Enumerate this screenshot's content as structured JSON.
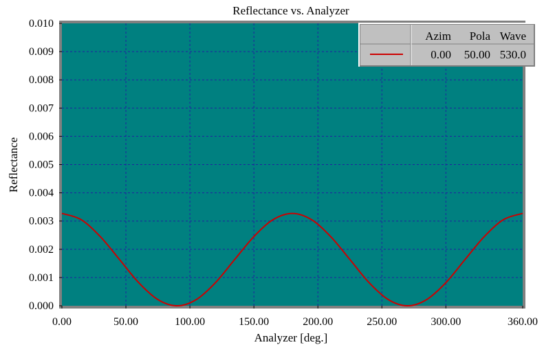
{
  "chart_data": {
    "type": "line",
    "title": "Reflectance vs. Analyzer",
    "xlabel": "Analyzer [deg.]",
    "ylabel": "Reflectance",
    "xlim": [
      0,
      360
    ],
    "ylim": [
      0,
      0.01
    ],
    "x_ticks": [
      "0.00",
      "50.00",
      "100.00",
      "150.00",
      "200.00",
      "250.00",
      "300.00",
      "360.00"
    ],
    "y_ticks": [
      "0.000",
      "0.001",
      "0.002",
      "0.003",
      "0.004",
      "0.005",
      "0.006",
      "0.007",
      "0.008",
      "0.009",
      "0.010"
    ],
    "grid": true,
    "legend_position": "top-right",
    "legend": {
      "headers": [
        "Azim",
        "Pola",
        "Wave"
      ],
      "rows": [
        {
          "values": [
            "0.00",
            "50.00",
            "530.0"
          ],
          "color": "#cc0000"
        }
      ]
    },
    "series": [
      {
        "color": "#cc0000",
        "x": [
          0,
          15,
          30,
          45,
          60,
          75,
          90,
          105,
          120,
          135,
          150,
          165,
          180,
          195,
          210,
          225,
          240,
          255,
          270,
          285,
          300,
          315,
          330,
          345,
          360
        ],
        "values": [
          0.00327,
          0.00305,
          0.00245,
          0.00164,
          0.00082,
          0.00022,
          0.0,
          0.00022,
          0.00082,
          0.00164,
          0.00245,
          0.00305,
          0.00327,
          0.00305,
          0.00245,
          0.00164,
          0.00082,
          0.00022,
          0.0,
          0.00022,
          0.00082,
          0.00164,
          0.00245,
          0.00305,
          0.00327
        ]
      }
    ],
    "colors": {
      "plot_background": "#008080",
      "grid": "#2020a0",
      "legend_background": "#c0c0c0"
    }
  }
}
